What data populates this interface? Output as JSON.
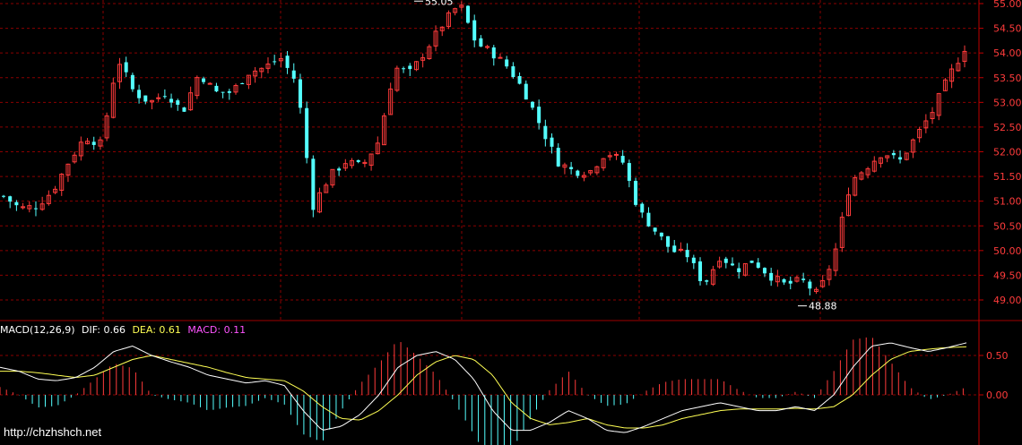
{
  "chart_data": [
    {
      "type": "candlestick",
      "panel": "price",
      "y_ticks": [
        "55.00",
        "54.50",
        "54.00",
        "53.50",
        "53.00",
        "52.50",
        "52.00",
        "51.50",
        "51.00",
        "50.50",
        "50.00",
        "49.50",
        "49.00"
      ],
      "y_tick_values": [
        55.0,
        54.5,
        54.0,
        53.5,
        53.0,
        52.5,
        52.0,
        51.5,
        51.0,
        50.5,
        50.0,
        49.5,
        49.0
      ],
      "ylim": [
        48.7,
        55.1
      ],
      "grid": true,
      "annotations": [
        {
          "text": "55.05",
          "value": 55.05,
          "kind": "high"
        },
        {
          "text": "48.88",
          "value": 48.88,
          "kind": "low"
        }
      ],
      "close_path": [
        51.1,
        50.85,
        50.9,
        51.2,
        51.8,
        52.3,
        52.15,
        53.9,
        53.2,
        53.0,
        53.2,
        52.8,
        53.6,
        53.2,
        53.2,
        53.6,
        53.7,
        53.9,
        53.4,
        50.9,
        51.5,
        51.8,
        51.7,
        52.2,
        53.7,
        53.6,
        54.1,
        54.6,
        55.0,
        54.2,
        54.0,
        53.7,
        53.2,
        52.5,
        51.8,
        51.6,
        51.6,
        52.0,
        51.8,
        50.8,
        50.4,
        50.0,
        49.9,
        49.3,
        49.9,
        49.6,
        49.8,
        49.5,
        49.3,
        49.4,
        49.1,
        49.9,
        51.4,
        51.7,
        52.0,
        51.8,
        52.3,
        52.8,
        53.5,
        54.1
      ],
      "candles_count": 150,
      "colors": {
        "up": "#ff3b3b",
        "down": "#54ffff"
      }
    },
    {
      "type": "macd",
      "panel": "indicator",
      "y_ticks": [
        "0.50",
        "0.00"
      ],
      "y_tick_values": [
        0.5,
        0.0
      ],
      "ylim": [
        -0.52,
        0.9
      ],
      "dif_path": [
        0.35,
        0.3,
        0.2,
        0.18,
        0.22,
        0.35,
        0.55,
        0.62,
        0.5,
        0.42,
        0.35,
        0.25,
        0.2,
        0.15,
        0.18,
        0.12,
        -0.2,
        -0.45,
        -0.4,
        -0.25,
        0.0,
        0.35,
        0.5,
        0.55,
        0.45,
        0.2,
        -0.2,
        -0.45,
        -0.45,
        -0.35,
        -0.2,
        -0.3,
        -0.45,
        -0.48,
        -0.4,
        -0.3,
        -0.2,
        -0.15,
        -0.1,
        -0.15,
        -0.2,
        -0.2,
        -0.15,
        -0.2,
        0.0,
        0.35,
        0.62,
        0.66,
        0.6,
        0.55,
        0.6,
        0.66
      ],
      "dea_path": [
        0.3,
        0.3,
        0.28,
        0.25,
        0.22,
        0.25,
        0.35,
        0.45,
        0.5,
        0.45,
        0.4,
        0.35,
        0.28,
        0.22,
        0.2,
        0.18,
        0.05,
        -0.15,
        -0.3,
        -0.32,
        -0.2,
        0.0,
        0.25,
        0.42,
        0.5,
        0.45,
        0.25,
        -0.1,
        -0.3,
        -0.38,
        -0.35,
        -0.3,
        -0.38,
        -0.42,
        -0.42,
        -0.38,
        -0.3,
        -0.25,
        -0.2,
        -0.18,
        -0.18,
        -0.18,
        -0.17,
        -0.18,
        -0.15,
        0.0,
        0.25,
        0.45,
        0.55,
        0.58,
        0.6,
        0.61
      ],
      "header": {
        "name": "MACD(12,26,9)",
        "dif_label": "DIF:",
        "dif_value": "0.66",
        "dea_label": "DEA:",
        "dea_value": "0.61",
        "macd_label": "MACD:",
        "macd_value": "0.11"
      },
      "colors": {
        "dif": "#ffffff",
        "dea": "#ffff54",
        "hist_up": "#ff3b3b",
        "hist_down": "#54ffff",
        "macd_label": "#ff54ff"
      }
    }
  ],
  "watermark": "http://chzhshch.net",
  "colors": {
    "background": "#000000",
    "grid": "#8b0000",
    "axis": "#c00000",
    "tick_text": "#ff3b3b",
    "annotation": "#ffffff"
  }
}
